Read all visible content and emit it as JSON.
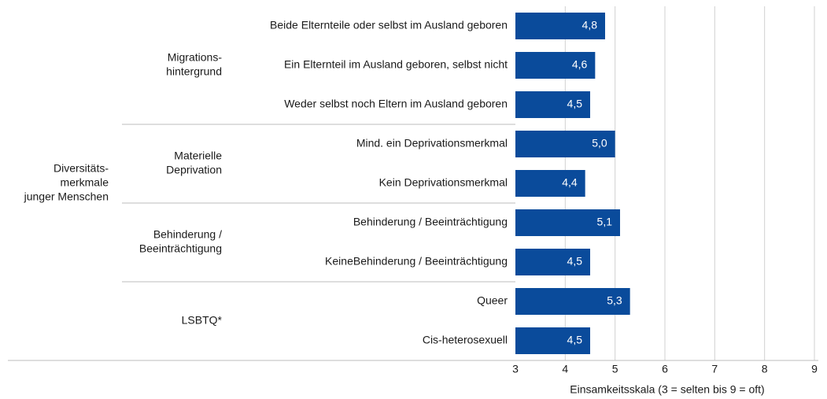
{
  "chart_data": {
    "type": "bar",
    "color": "#0a4b9b",
    "grid": true,
    "y_group_label": [
      "Diversitäts-",
      "merkmale",
      "junger Menschen"
    ],
    "groups": [
      {
        "label": [
          "Migrations-",
          "hintergrund"
        ],
        "categories": [
          "Beide Elternteile oder selbst im Ausland geboren",
          "Ein Elternteil im Ausland geboren, selbst nicht",
          "Weder selbst noch Eltern im Ausland geboren"
        ],
        "values": [
          4.8,
          4.6,
          4.5
        ],
        "value_labels": [
          "4,8",
          "4,6",
          "4,5"
        ]
      },
      {
        "label": [
          "Materielle",
          "Deprivation"
        ],
        "categories": [
          "Mind. ein Deprivationsmerkmal",
          "Kein Deprivationsmerkmal"
        ],
        "values": [
          5.0,
          4.4
        ],
        "value_labels": [
          "5,0",
          "4,4"
        ]
      },
      {
        "label": [
          "Behinderung / ",
          "Beeinträchtigung"
        ],
        "categories": [
          "Behinderung / Beeinträchtigung",
          "KeineBehinderung / Beeinträchtigung"
        ],
        "values": [
          5.1,
          4.5
        ],
        "value_labels": [
          "5,1",
          "4,5"
        ]
      },
      {
        "label": [
          "LSBTQ*"
        ],
        "categories": [
          "Queer",
          "Cis-heterosexuell"
        ],
        "values": [
          5.3,
          4.5
        ],
        "value_labels": [
          "5,3",
          "4,5"
        ]
      }
    ],
    "xlim": [
      3,
      9
    ],
    "xticks": [
      3,
      4,
      5,
      6,
      7,
      8,
      9
    ],
    "x_label": "Einsamkeitsskala (3 = selten bis 9 = oft)"
  }
}
